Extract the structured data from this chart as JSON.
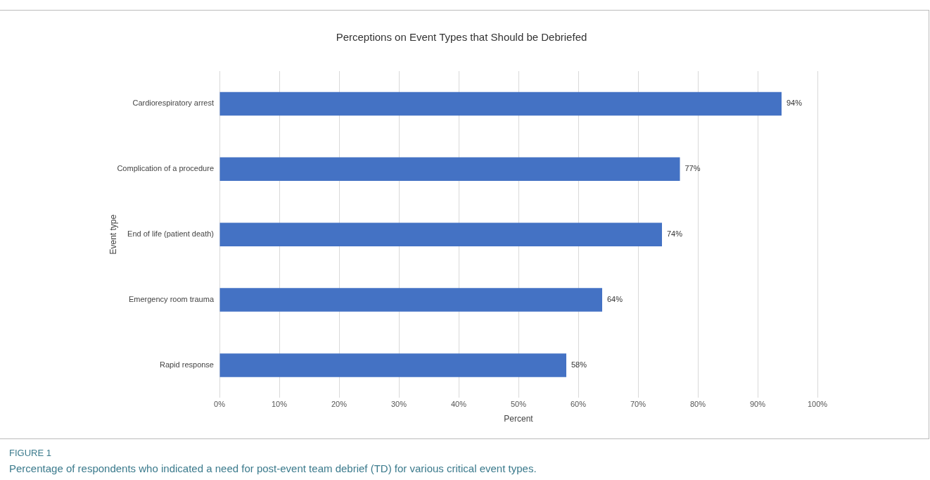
{
  "chart_data": {
    "type": "bar",
    "orientation": "horizontal",
    "title": "Perceptions on Event Types that Should be Debriefed",
    "xlabel": "Percent",
    "ylabel": "Event type",
    "categories": [
      "Cardiorespiratory arrest",
      "Complication of a procedure",
      "End of life (patient death)",
      "Emergency room trauma",
      "Rapid response"
    ],
    "values": [
      94,
      77,
      74,
      64,
      58
    ],
    "value_labels": [
      "94%",
      "77%",
      "74%",
      "64%",
      "58%"
    ],
    "color": "#4472c4",
    "xlim": [
      0,
      100
    ],
    "xticks": [
      {
        "value": 0,
        "label": "0%"
      },
      {
        "value": 10,
        "label": "10%"
      },
      {
        "value": 20,
        "label": "20%"
      },
      {
        "value": 30,
        "label": "30%"
      },
      {
        "value": 40,
        "label": "40%"
      },
      {
        "value": 50,
        "label": "50%"
      },
      {
        "value": 60,
        "label": "60%"
      },
      {
        "value": 70,
        "label": "70%"
      },
      {
        "value": 80,
        "label": "80%"
      },
      {
        "value": 90,
        "label": "90%"
      },
      {
        "value": 100,
        "label": "100%"
      }
    ],
    "grid": "x",
    "legend": false,
    "annotations": [
      "FIGURE 1",
      "Percentage of respondents who indicated a need for post-event team debrief (TD) for various critical event types."
    ]
  }
}
